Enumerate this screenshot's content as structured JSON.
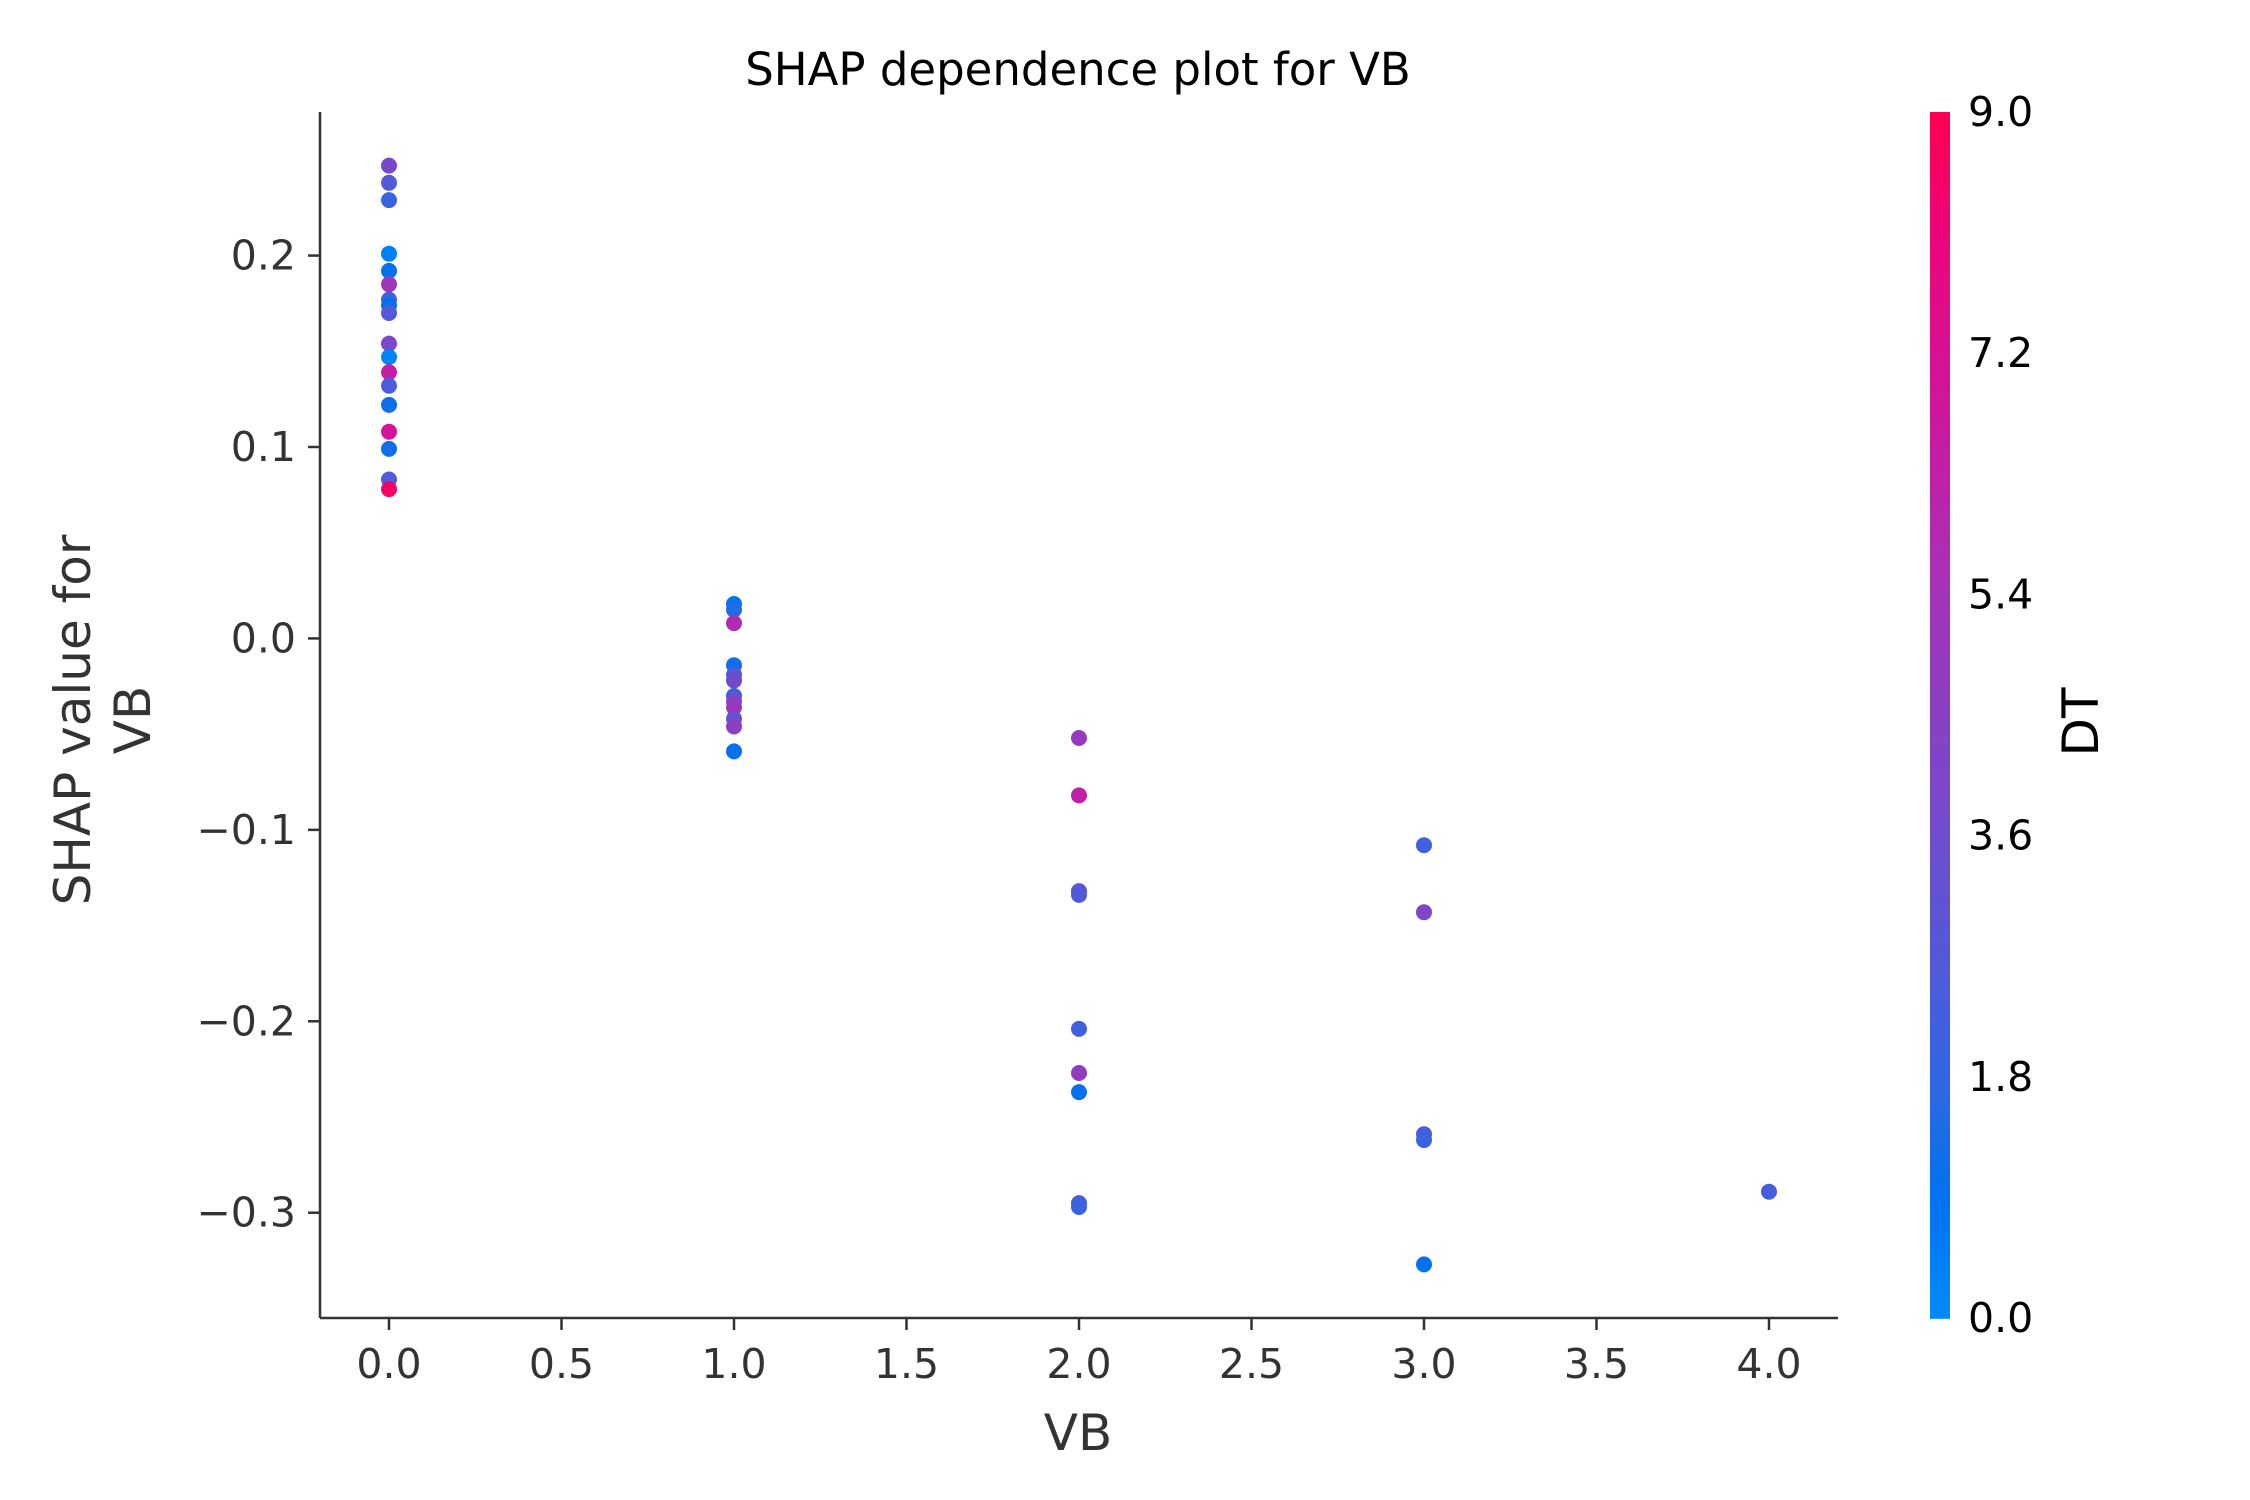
{
  "chart_data": {
    "type": "scatter",
    "title": "SHAP dependence plot for VB",
    "xlabel": "VB",
    "ylabel": [
      "SHAP value for",
      "VB"
    ],
    "xlim": [
      -0.2,
      4.2
    ],
    "ylim": [
      -0.355,
      0.275
    ],
    "xticks": [
      0.0,
      0.5,
      1.0,
      1.5,
      2.0,
      2.5,
      3.0,
      3.5,
      4.0
    ],
    "xtick_labels": [
      "0.0",
      "0.5",
      "1.0",
      "1.5",
      "2.0",
      "2.5",
      "3.0",
      "3.5",
      "4.0"
    ],
    "yticks": [
      0.2,
      0.1,
      0.0,
      -0.1,
      -0.2,
      -0.3
    ],
    "ytick_labels": [
      "0.2",
      "0.1",
      "0.0",
      "−0.1",
      "−0.2",
      "−0.3"
    ],
    "grid": false,
    "colorbar": {
      "label": "DT",
      "min": 0.0,
      "max": 9.0,
      "ticks": [
        0.0,
        1.8,
        3.6,
        5.4,
        7.2,
        9.0
      ],
      "tick_labels": [
        "0.0",
        "1.8",
        "3.6",
        "5.4",
        "7.2",
        "9.0"
      ],
      "colors": [
        "#008bfb",
        "#0072ef",
        "#3366e2",
        "#5359d8",
        "#704ccd",
        "#8a40c3",
        "#a434b8",
        "#c020a8",
        "#d81193",
        "#ec047a",
        "#ff0052"
      ]
    },
    "points": [
      {
        "x": 0,
        "y": 0.247,
        "c": 3.8
      },
      {
        "x": 0,
        "y": 0.238,
        "c": 2.7
      },
      {
        "x": 0,
        "y": 0.229,
        "c": 2.0
      },
      {
        "x": 0,
        "y": 0.201,
        "c": 0.4
      },
      {
        "x": 0,
        "y": 0.192,
        "c": 1.0
      },
      {
        "x": 0,
        "y": 0.185,
        "c": 5.2
      },
      {
        "x": 0,
        "y": 0.177,
        "c": 2.2
      },
      {
        "x": 0,
        "y": 0.174,
        "c": 0.9
      },
      {
        "x": 0,
        "y": 0.17,
        "c": 2.8
      },
      {
        "x": 0,
        "y": 0.154,
        "c": 4.0
      },
      {
        "x": 0,
        "y": 0.147,
        "c": 0.3
      },
      {
        "x": 0,
        "y": 0.139,
        "c": 6.5
      },
      {
        "x": 0,
        "y": 0.132,
        "c": 2.5
      },
      {
        "x": 0,
        "y": 0.122,
        "c": 1.1
      },
      {
        "x": 0,
        "y": 0.108,
        "c": 7.0
      },
      {
        "x": 0,
        "y": 0.099,
        "c": 1.2
      },
      {
        "x": 0,
        "y": 0.083,
        "c": 2.5
      },
      {
        "x": 0,
        "y": 0.078,
        "c": 8.5
      },
      {
        "x": 1,
        "y": 0.018,
        "c": 0.8
      },
      {
        "x": 1,
        "y": 0.015,
        "c": 1.5
      },
      {
        "x": 1,
        "y": 0.008,
        "c": 5.8
      },
      {
        "x": 1,
        "y": -0.014,
        "c": 1.2
      },
      {
        "x": 1,
        "y": -0.019,
        "c": 2.7
      },
      {
        "x": 1,
        "y": -0.022,
        "c": 3.6
      },
      {
        "x": 1,
        "y": -0.03,
        "c": 2.2
      },
      {
        "x": 1,
        "y": -0.033,
        "c": 4.3
      },
      {
        "x": 1,
        "y": -0.036,
        "c": 5.0
      },
      {
        "x": 1,
        "y": -0.042,
        "c": 3.4
      },
      {
        "x": 1,
        "y": -0.046,
        "c": 4.5
      },
      {
        "x": 1,
        "y": -0.059,
        "c": 1.0
      },
      {
        "x": 2,
        "y": -0.052,
        "c": 5.0
      },
      {
        "x": 2,
        "y": -0.082,
        "c": 6.3
      },
      {
        "x": 2,
        "y": -0.132,
        "c": 3.0
      },
      {
        "x": 2,
        "y": -0.134,
        "c": 2.6
      },
      {
        "x": 2,
        "y": -0.204,
        "c": 2.2
      },
      {
        "x": 2,
        "y": -0.227,
        "c": 4.8
      },
      {
        "x": 2,
        "y": -0.237,
        "c": 1.0
      },
      {
        "x": 2,
        "y": -0.295,
        "c": 2.4
      },
      {
        "x": 2,
        "y": -0.297,
        "c": 2.0
      },
      {
        "x": 3,
        "y": -0.108,
        "c": 2.2
      },
      {
        "x": 3,
        "y": -0.143,
        "c": 4.0
      },
      {
        "x": 3,
        "y": -0.259,
        "c": 2.4
      },
      {
        "x": 3,
        "y": -0.262,
        "c": 2.0
      },
      {
        "x": 3,
        "y": -0.327,
        "c": 1.0
      },
      {
        "x": 4,
        "y": -0.289,
        "c": 2.3
      }
    ]
  }
}
